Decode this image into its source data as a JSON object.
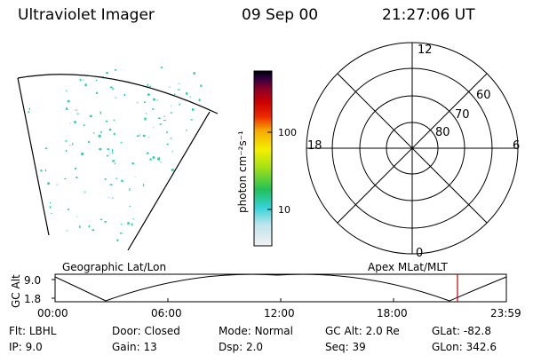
{
  "header": {
    "instrument": "Ultraviolet Imager",
    "date": "09 Sep 00",
    "time": "21:27:06 UT"
  },
  "colorbar": {
    "unit_label": "photon cm⁻²s⁻¹",
    "ticks": [
      "100",
      "10"
    ]
  },
  "polar": {
    "mlt_labels": {
      "top": "12",
      "left": "18",
      "right": "6",
      "bottom": "0"
    },
    "lat_labels": [
      "60",
      "70",
      "80"
    ]
  },
  "timeline": {
    "left_title": "Geographic Lat/Lon",
    "right_title": "Apex MLat/MLT",
    "axis_title": "GC Alt",
    "y_ticks": [
      "9.0",
      "1.8"
    ],
    "x_ticks": [
      "00:00",
      "06:00",
      "12:00",
      "18:00",
      "23:59"
    ],
    "marker_color": "#cc0000"
  },
  "info": {
    "row1": [
      {
        "key": "Flt:",
        "val": "LBHL"
      },
      {
        "key": "Door:",
        "val": "Closed"
      },
      {
        "key": "Mode:",
        "val": "Normal"
      },
      {
        "key": "GC Alt:",
        "val": "2.0 Re"
      },
      {
        "key": "GLat:",
        "val": "-82.8"
      }
    ],
    "row2": [
      {
        "key": "IP:",
        "val": "9.0"
      },
      {
        "key": "Gain:",
        "val": "13"
      },
      {
        "key": "Dsp:",
        "val": "2.0"
      },
      {
        "key": "Seq:",
        "val": "39"
      },
      {
        "key": "GLon:",
        "val": "342.6"
      }
    ]
  },
  "colors": {
    "speckle": "#2fd0a8",
    "colorbar_stops": [
      "#f2f2f2",
      "#bfe4ee",
      "#35d2d8",
      "#22c05a",
      "#a6e015",
      "#f4f000",
      "#f6a800",
      "#ec2a00",
      "#cc0000",
      "#8a002a",
      "#2a0040",
      "#000000"
    ]
  }
}
